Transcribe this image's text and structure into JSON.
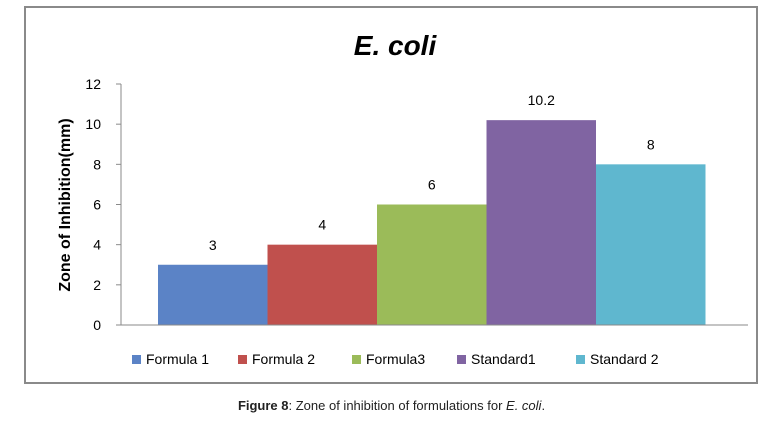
{
  "chart_data": {
    "type": "bar",
    "title": "E. coli",
    "ylabel": "Zone of Inhibition(mm)",
    "xlabel": "",
    "ylim": [
      0,
      12
    ],
    "yticks": [
      0,
      2,
      4,
      6,
      8,
      10,
      12
    ],
    "grid": false,
    "legend_position": "bottom",
    "series": [
      {
        "name": "Formula 1",
        "value": 3,
        "label": "3",
        "color": "#5B83C6"
      },
      {
        "name": "Formula 2",
        "value": 4,
        "label": "4",
        "color": "#C0504D"
      },
      {
        "name": "Formula3",
        "value": 6,
        "label": "6",
        "color": "#9BBB59"
      },
      {
        "name": "Standard1",
        "value": 10.2,
        "label": "10.2",
        "color": "#8064A2"
      },
      {
        "name": "Standard 2",
        "value": 8,
        "label": "8",
        "color": "#5FB7CF"
      }
    ]
  },
  "caption": {
    "figure_label": "Figure 8",
    "text": ": Zone of inhibition of formulations for ",
    "organism": "E. coli",
    "end": "."
  }
}
